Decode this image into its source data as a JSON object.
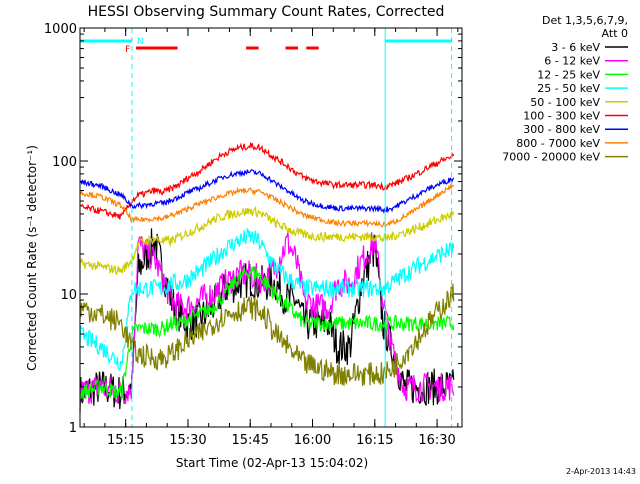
{
  "chart_data": {
    "type": "line",
    "title": "HESSI Observing Summary Count Rates, Corrected",
    "xlabel": "Start Time (02-Apr-13 15:04:02)",
    "ylabel": "Corrected Count Rate (s⁻¹ detector⁻¹)",
    "yscale": "log",
    "ylim": [
      1,
      1000
    ],
    "xlim_minutes": [
      0,
      92
    ],
    "x_ticks": [
      {
        "label": "15:15",
        "m": 11
      },
      {
        "label": "15:30",
        "m": 26
      },
      {
        "label": "15:45",
        "m": 41
      },
      {
        "label": "16:00",
        "m": 56
      },
      {
        "label": "16:15",
        "m": 71
      },
      {
        "label": "16:30",
        "m": 86
      }
    ],
    "y_ticks": [
      {
        "label": "1",
        "v": 1
      },
      {
        "label": "10",
        "v": 10
      },
      {
        "label": "100",
        "v": 100
      },
      {
        "label": "1000",
        "v": 1000
      }
    ],
    "legend_header": [
      "Det 1,3,5,6,7,9,",
      "Att 0"
    ],
    "legend_placement": "right",
    "footer": "2-Apr-2013 14:43",
    "flags": [
      {
        "label": "F",
        "color": "#ff0000"
      },
      {
        "label": "N",
        "color": "#00ffff"
      }
    ],
    "series": [
      {
        "name": "3 - 6 keV",
        "color": "#000000",
        "x": [
          0,
          5,
          10,
          12.5,
          14,
          18,
          20,
          22,
          24,
          26,
          29,
          32,
          35,
          38,
          41,
          43,
          45,
          47,
          50,
          52,
          54,
          57,
          60,
          62,
          65,
          68,
          71,
          73,
          75,
          78,
          81,
          84,
          87,
          90
        ],
        "y": [
          1.8,
          2,
          1.8,
          2,
          15,
          25,
          15,
          9,
          7,
          6,
          6.5,
          8,
          11,
          12,
          13,
          12,
          12,
          12,
          9,
          9,
          6,
          6,
          6,
          4,
          4,
          13,
          22,
          6,
          4,
          2,
          2,
          2,
          2,
          2
        ]
      },
      {
        "name": "6 - 12 keV",
        "color": "#ff00ff",
        "x": [
          0,
          5,
          10,
          12.5,
          14,
          18,
          20,
          22,
          24,
          26,
          29,
          32,
          35,
          38,
          41,
          43,
          45,
          47,
          50,
          52,
          54,
          57,
          60,
          62,
          65,
          68,
          71,
          73,
          75,
          78,
          81,
          84,
          87,
          90
        ],
        "y": [
          1.8,
          2,
          1.8,
          2,
          24,
          18,
          13,
          9,
          8,
          8,
          9,
          10,
          12,
          14,
          14,
          13,
          13,
          16,
          25,
          18,
          9,
          8,
          8,
          12,
          12,
          18,
          25,
          9,
          4,
          2,
          2,
          2,
          2,
          2
        ]
      },
      {
        "name": "12 - 25 keV",
        "color": "#00ff00",
        "x": [
          0,
          5,
          10,
          12.5,
          14,
          18,
          20,
          22,
          24,
          26,
          29,
          32,
          35,
          38,
          41,
          43,
          45,
          47,
          50,
          52,
          54,
          57,
          60,
          62,
          65,
          68,
          71,
          73,
          75,
          78,
          81,
          84,
          87,
          90
        ],
        "y": [
          1.8,
          2,
          1.8,
          5,
          5.5,
          5.5,
          5.5,
          6,
          6,
          6.5,
          7,
          8,
          10,
          13,
          15,
          14,
          12,
          10,
          8,
          7,
          6,
          6,
          6,
          6,
          6,
          6,
          6,
          6,
          6,
          6,
          6,
          6,
          6,
          6
        ]
      },
      {
        "name": "25 - 50 keV",
        "color": "#00ffff",
        "x": [
          0,
          5,
          10,
          12.5,
          14,
          18,
          20,
          22,
          24,
          26,
          29,
          32,
          35,
          38,
          41,
          43,
          45,
          47,
          50,
          52,
          54,
          57,
          60,
          62,
          65,
          68,
          71,
          73,
          75,
          78,
          81,
          84,
          87,
          90
        ],
        "y": [
          5,
          4,
          3,
          11,
          11,
          11,
          11,
          12,
          12,
          13,
          15,
          18,
          22,
          25,
          27,
          25,
          20,
          16,
          13,
          12,
          11,
          11,
          11,
          11,
          11,
          11,
          11,
          11,
          12,
          14,
          16,
          18,
          20,
          22
        ]
      },
      {
        "name": "50 - 100 keV",
        "color": "#cccc00",
        "x": [
          0,
          5,
          10,
          12.5,
          14,
          18,
          20,
          22,
          24,
          26,
          29,
          32,
          35,
          38,
          41,
          43,
          45,
          47,
          50,
          52,
          54,
          57,
          60,
          62,
          65,
          68,
          71,
          73,
          75,
          78,
          81,
          84,
          87,
          90
        ],
        "y": [
          17,
          16,
          15,
          18,
          24,
          26,
          25,
          25,
          27,
          29,
          32,
          36,
          39,
          41,
          42,
          41,
          38,
          34,
          31,
          29,
          28,
          27,
          27,
          27,
          27,
          27,
          27,
          26,
          27,
          29,
          31,
          34,
          37,
          40
        ]
      },
      {
        "name": "100 - 300 keV",
        "color": "#ff0000",
        "x": [
          0,
          5,
          10,
          12.5,
          14,
          18,
          20,
          22,
          24,
          26,
          29,
          32,
          35,
          38,
          41,
          43,
          45,
          47,
          50,
          52,
          54,
          57,
          60,
          62,
          65,
          68,
          71,
          73,
          75,
          78,
          81,
          84,
          87,
          90
        ],
        "y": [
          45,
          42,
          38,
          50,
          55,
          60,
          58,
          62,
          67,
          75,
          85,
          100,
          115,
          125,
          130,
          127,
          118,
          105,
          92,
          82,
          75,
          70,
          67,
          66,
          66,
          66,
          66,
          64,
          66,
          72,
          80,
          90,
          100,
          110
        ]
      },
      {
        "name": "300 - 800 keV",
        "color": "#0000ff",
        "x": [
          0,
          5,
          10,
          12.5,
          14,
          18,
          20,
          22,
          24,
          26,
          29,
          32,
          35,
          38,
          41,
          43,
          45,
          47,
          50,
          52,
          54,
          57,
          60,
          62,
          65,
          68,
          71,
          73,
          75,
          78,
          81,
          84,
          87,
          90
        ],
        "y": [
          70,
          65,
          55,
          46,
          46,
          48,
          48,
          51,
          54,
          58,
          63,
          70,
          77,
          81,
          83,
          81,
          76,
          68,
          60,
          54,
          50,
          47,
          45,
          44,
          44,
          44,
          44,
          43,
          44,
          49,
          55,
          62,
          68,
          74
        ]
      },
      {
        "name": "800 - 7000 keV",
        "color": "#ff8000",
        "x": [
          0,
          5,
          10,
          12.5,
          14,
          18,
          20,
          22,
          24,
          26,
          29,
          32,
          35,
          38,
          41,
          43,
          45,
          47,
          50,
          52,
          54,
          57,
          60,
          62,
          65,
          68,
          71,
          73,
          75,
          78,
          81,
          84,
          87,
          90
        ],
        "y": [
          58,
          54,
          46,
          36,
          36,
          37,
          37,
          39,
          41,
          44,
          48,
          52,
          56,
          59,
          60,
          59,
          56,
          51,
          46,
          42,
          39,
          37,
          35,
          34,
          34,
          34,
          34,
          33,
          34,
          38,
          43,
          50,
          58,
          66
        ]
      },
      {
        "name": "7000 - 20000 keV",
        "color": "#808000",
        "x": [
          0,
          5,
          10,
          12.5,
          14,
          18,
          20,
          22,
          24,
          26,
          29,
          32,
          35,
          38,
          41,
          43,
          45,
          47,
          50,
          52,
          54,
          57,
          60,
          62,
          65,
          68,
          71,
          73,
          75,
          78,
          81,
          84,
          87,
          90
        ],
        "y": [
          8,
          7,
          6,
          4,
          3.5,
          3.3,
          3.3,
          3.5,
          4,
          4.5,
          5,
          6,
          7,
          7.5,
          8,
          7.5,
          6.5,
          5,
          4,
          3.4,
          3,
          2.8,
          2.6,
          2.5,
          2.5,
          2.5,
          2.5,
          2.5,
          2.7,
          3.5,
          4.5,
          6,
          8,
          10
        ]
      }
    ]
  }
}
